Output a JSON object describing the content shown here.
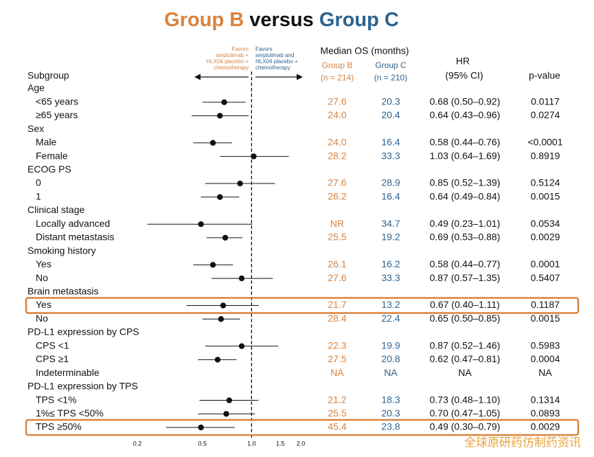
{
  "chart_data": {
    "type": "forest",
    "title_parts": [
      "Group B",
      "versus",
      "Group C"
    ],
    "title_colors": [
      "#d9823d",
      "#111111",
      "#2c6391"
    ],
    "favors_left": [
      "Favors",
      "serplulimab +",
      "HLX04 placebo +",
      "chemotherapy"
    ],
    "favors_right": [
      "Favors",
      "serplulimab and",
      "HLX04 placebo +",
      "chemotherapy"
    ],
    "color_b": "#d9823d",
    "color_c": "#2c6391",
    "subgroup_header": "Subgroup",
    "median_header": "Median OS (months)",
    "group_b": "Group B",
    "group_b_n": "(n = 214)",
    "group_c": "Group C",
    "group_c_n": "(n = 210)",
    "hr_header": "HR",
    "ci_header": "(95% CI)",
    "p_header": "p-value",
    "xscale": "log",
    "xlim": [
      0.2,
      2.0
    ],
    "xticks": [
      0.2,
      0.5,
      {
        "value": 1,
        "label": "1.0"
      },
      1.5,
      {
        "value": 2,
        "label": "2.0"
      }
    ],
    "refline": 1,
    "highlight_color": "#d9823d",
    "rows": [
      {
        "label": "Age"
      },
      {
        "label": "<65 years",
        "b": "27.6",
        "c": "20.3",
        "hr": 0.68,
        "lo": 0.5,
        "hi": 0.92,
        "ci": "0.68 (0.50–0.92)",
        "p": "0.0117"
      },
      {
        "label": "≥65 years",
        "b": "24.0",
        "c": "20.4",
        "hr": 0.64,
        "lo": 0.43,
        "hi": 0.96,
        "ci": "0.64 (0.43–0.96)",
        "p": "0.0274"
      },
      {
        "label": "Sex"
      },
      {
        "label": "Male",
        "b": "24.0",
        "c": "16.4",
        "hr": 0.58,
        "lo": 0.44,
        "hi": 0.76,
        "ci": "0.58 (0.44–0.76)",
        "p": "<0.0001"
      },
      {
        "label": "Female",
        "b": "28.2",
        "c": "33.3",
        "hr": 1.03,
        "lo": 0.64,
        "hi": 1.69,
        "ci": "1.03 (0.64–1.69)",
        "p": "0.8919"
      },
      {
        "label": "ECOG PS"
      },
      {
        "label": "0",
        "b": "27.6",
        "c": "28.9",
        "hr": 0.85,
        "lo": 0.52,
        "hi": 1.39,
        "ci": "0.85 (0.52–1.39)",
        "p": "0.5124"
      },
      {
        "label": "1",
        "b": "26.2",
        "c": "16.4",
        "hr": 0.64,
        "lo": 0.49,
        "hi": 0.84,
        "ci": "0.64 (0.49–0.84)",
        "p": "0.0015"
      },
      {
        "label": "Clinical stage"
      },
      {
        "label": "Locally advanced",
        "b": "NR",
        "c": "34.7",
        "hr": 0.49,
        "lo": 0.23,
        "hi": 1.01,
        "ci": "0.49 (0.23–1.01)",
        "p": "0.0534"
      },
      {
        "label": "Distant metastasis",
        "b": "25.5",
        "c": "19.2",
        "hr": 0.69,
        "lo": 0.53,
        "hi": 0.88,
        "ci": "0.69 (0.53–0.88)",
        "p": "0.0029"
      },
      {
        "label": "Smoking history"
      },
      {
        "label": "Yes",
        "b": "26.1",
        "c": "16.2",
        "hr": 0.58,
        "lo": 0.44,
        "hi": 0.77,
        "ci": "0.58 (0.44–0.77)",
        "p": "0.0001"
      },
      {
        "label": "No",
        "b": "27.6",
        "c": "33.3",
        "hr": 0.87,
        "lo": 0.57,
        "hi": 1.35,
        "ci": "0.87 (0.57–1.35)",
        "p": "0.5407"
      },
      {
        "label": "Brain metastasis"
      },
      {
        "label": "Yes",
        "b": "21.7",
        "c": "13.2",
        "hr": 0.67,
        "lo": 0.4,
        "hi": 1.11,
        "ci": "0.67 (0.40–1.11)",
        "p": "0.1187",
        "highlight": true
      },
      {
        "label": "No",
        "b": "28.4",
        "c": "22.4",
        "hr": 0.65,
        "lo": 0.5,
        "hi": 0.85,
        "ci": "0.65 (0.50–0.85)",
        "p": "0.0015"
      },
      {
        "label": "PD-L1 expression by CPS"
      },
      {
        "label": "CPS <1",
        "b": "22.3",
        "c": "19.9",
        "hr": 0.87,
        "lo": 0.52,
        "hi": 1.46,
        "ci": "0.87 (0.52–1.46)",
        "p": "0.5983"
      },
      {
        "label": "CPS ≥1",
        "b": "27.5",
        "c": "20.8",
        "hr": 0.62,
        "lo": 0.47,
        "hi": 0.81,
        "ci": "0.62 (0.47–0.81)",
        "p": "0.0004"
      },
      {
        "label": "Indeterminable",
        "b": "NA",
        "c": "NA",
        "ci": "NA",
        "p": "NA"
      },
      {
        "label": "PD-L1 expression by TPS"
      },
      {
        "label": "TPS <1%",
        "b": "21.2",
        "c": "18.3",
        "hr": 0.73,
        "lo": 0.48,
        "hi": 1.1,
        "ci": "0.73 (0.48–1.10)",
        "p": "0.1314"
      },
      {
        "label": "1%≤ TPS <50%",
        "b": "25.5",
        "c": "20.3",
        "hr": 0.7,
        "lo": 0.47,
        "hi": 1.05,
        "ci": "0.70 (0.47–1.05)",
        "p": "0.0893"
      },
      {
        "label": "TPS ≥50%",
        "b": "45.4",
        "c": "23.8",
        "hr": 0.49,
        "lo": 0.3,
        "hi": 0.79,
        "ci": "0.49 (0.30–0.79)",
        "p": "0.0029",
        "highlight": true
      }
    ],
    "watermark": "全球原研药仿制药资讯"
  }
}
